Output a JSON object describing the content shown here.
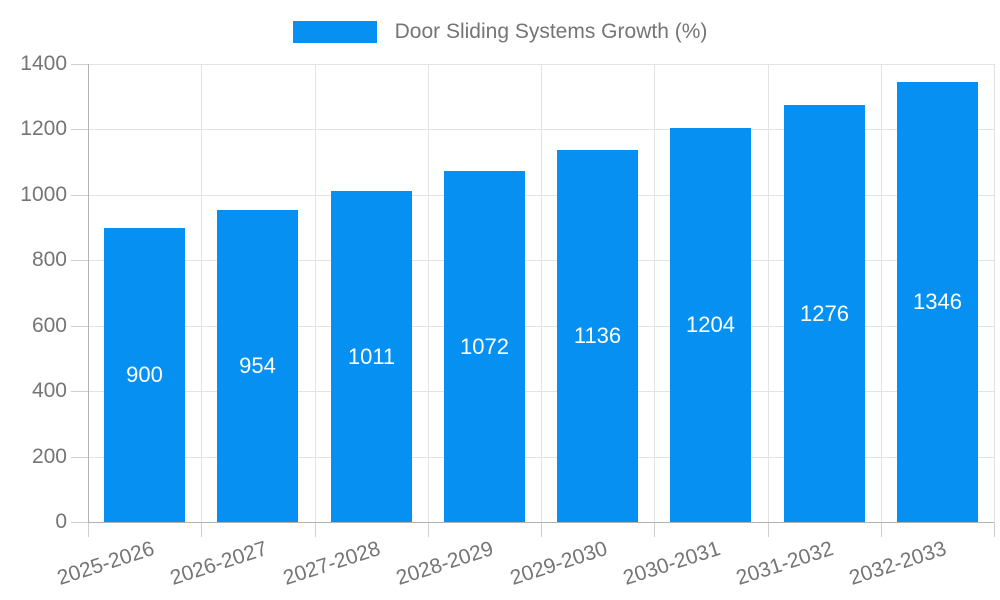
{
  "chart_data": {
    "type": "bar",
    "title": "Door Sliding Systems Growth (%)",
    "legend_position": "top",
    "categories": [
      "2025-2026",
      "2026-2027",
      "2027-2028",
      "2028-2029",
      "2029-2030",
      "2030-2031",
      "2031-2032",
      "2032-2033"
    ],
    "values": [
      900,
      954,
      1011,
      1072,
      1136,
      1204,
      1276,
      1346
    ],
    "value_labels": [
      "900",
      "954",
      "1011",
      "1072",
      "1136",
      "1204",
      "1276",
      "1346"
    ],
    "xlabel": "",
    "ylabel": "",
    "ylim": [
      0,
      1400
    ],
    "yticks": [
      0,
      200,
      400,
      600,
      800,
      1000,
      1200,
      1400
    ],
    "grid": true,
    "colors": {
      "bar": "#0590f2",
      "bar_value_text": "#ffffff",
      "axis_text": "#757575",
      "gridline": "#e3e3e3",
      "axis_line": "#b3b3b3",
      "tick": "#cfcfcf",
      "background": "#ffffff"
    }
  }
}
